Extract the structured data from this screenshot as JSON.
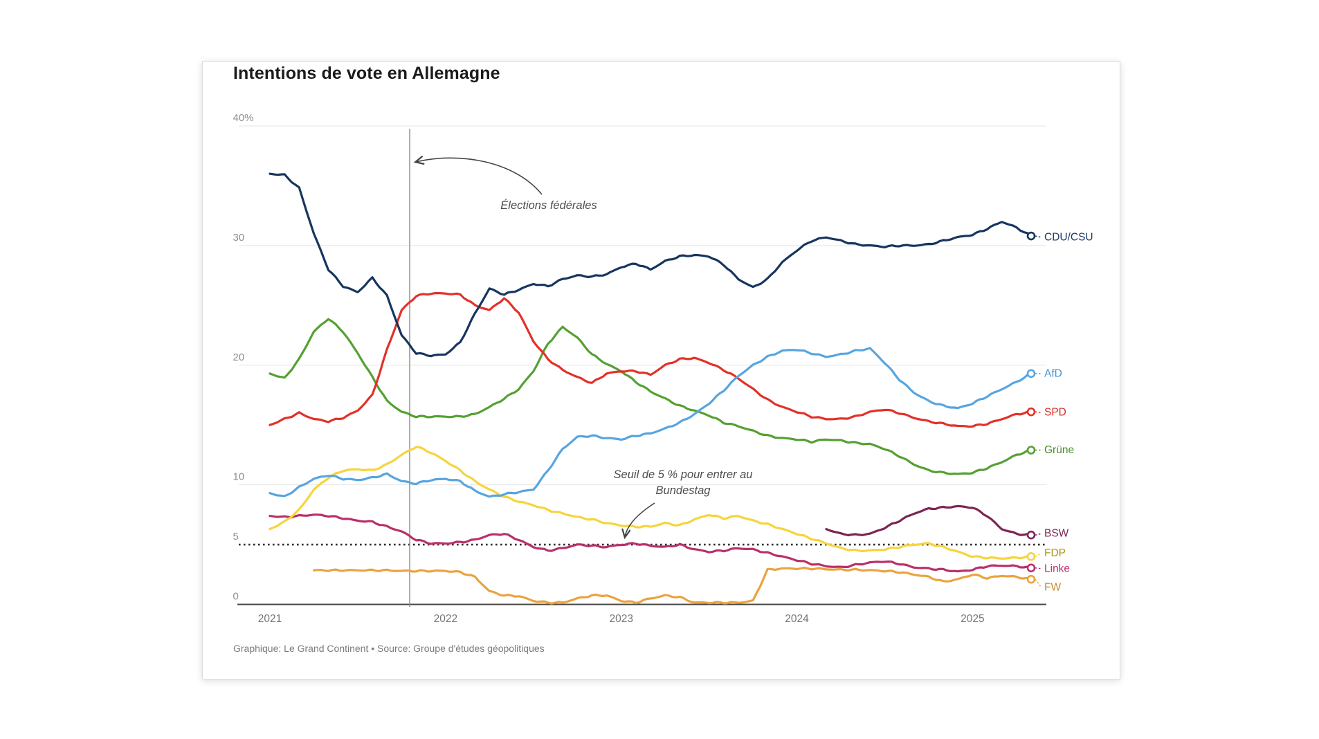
{
  "card": {
    "title": "Intentions de vote en Allemagne",
    "footer": "Graphique: Le Grand Continent • Source: Groupe d'études géopolitiques"
  },
  "chart_data": {
    "type": "line",
    "title": "Intentions de vote en Allemagne",
    "ylabel": "",
    "xlabel": "",
    "ylim": [
      0,
      40
    ],
    "grid": true,
    "legend_position": "right-of-line-ends",
    "y_axis": {
      "ticks": [
        {
          "label": "40%",
          "value": 40,
          "gridline": "solid"
        },
        {
          "label": "30",
          "value": 30,
          "gridline": "solid"
        },
        {
          "label": "20",
          "value": 20,
          "gridline": "solid"
        },
        {
          "label": "10",
          "value": 10,
          "gridline": "solid"
        },
        {
          "label": "5",
          "value": 5,
          "gridline": "dotted-threshold"
        },
        {
          "label": "0",
          "value": 0,
          "gridline": "axis"
        }
      ]
    },
    "x_axis": {
      "tick_labels": [
        "2021",
        "2022",
        "2023",
        "2024",
        "2025"
      ]
    },
    "threshold": {
      "value": 5,
      "style": "dotted",
      "color": "#2e2e2e"
    },
    "annotations": {
      "election": {
        "text": "Élections fédérales",
        "month_index": 9.55,
        "line_color": "#8a8a8a"
      },
      "threshold_note": {
        "line1": "Seuil de 5 % pour entrer au",
        "line2": "Bundestag"
      }
    },
    "months": [
      "2021-01",
      "2021-02",
      "2021-03",
      "2021-04",
      "2021-05",
      "2021-06",
      "2021-07",
      "2021-08",
      "2021-09",
      "2021-10",
      "2021-11",
      "2021-12",
      "2022-01",
      "2022-02",
      "2022-03",
      "2022-04",
      "2022-05",
      "2022-06",
      "2022-07",
      "2022-08",
      "2022-09",
      "2022-10",
      "2022-11",
      "2022-12",
      "2023-01",
      "2023-02",
      "2023-03",
      "2023-04",
      "2023-05",
      "2023-06",
      "2023-07",
      "2023-08",
      "2023-09",
      "2023-10",
      "2023-11",
      "2023-12",
      "2024-01",
      "2024-02",
      "2024-03",
      "2024-04",
      "2024-05",
      "2024-06",
      "2024-07",
      "2024-08",
      "2024-09",
      "2024-10",
      "2024-11",
      "2024-12",
      "2025-01",
      "2025-02",
      "2025-03",
      "2025-04",
      "2025-05"
    ],
    "series": [
      {
        "id": "cdu-csu",
        "name": "CDU/CSU",
        "color": "#17355e",
        "label_color": "#1c3a68",
        "values": [
          36.0,
          35.9,
          34.8,
          31.0,
          28.0,
          26.6,
          26.1,
          27.3,
          25.8,
          22.5,
          21.0,
          20.8,
          20.9,
          21.9,
          24.3,
          26.4,
          25.9,
          26.3,
          26.8,
          26.6,
          27.2,
          27.5,
          27.4,
          27.6,
          28.2,
          28.5,
          28.0,
          28.7,
          29.1,
          29.2,
          29.1,
          28.4,
          27.2,
          26.5,
          27.2,
          28.6,
          29.6,
          30.4,
          30.7,
          30.4,
          30.1,
          30.0,
          29.9,
          30.0,
          30.0,
          30.1,
          30.4,
          30.7,
          30.9,
          31.4,
          32.0,
          31.5,
          30.8
        ]
      },
      {
        "id": "afd",
        "name": "AfD",
        "color": "#57a5df",
        "label_color": "#4295d4",
        "values": [
          9.3,
          9.0,
          9.8,
          10.5,
          10.8,
          10.5,
          10.4,
          10.6,
          10.9,
          10.3,
          10.1,
          10.4,
          10.5,
          10.3,
          9.5,
          9.0,
          9.2,
          9.4,
          9.6,
          11.2,
          13.0,
          14.0,
          14.1,
          13.9,
          13.8,
          14.1,
          14.3,
          14.7,
          15.2,
          15.9,
          16.8,
          17.9,
          19.1,
          20.0,
          20.7,
          21.2,
          21.3,
          21.0,
          20.7,
          20.9,
          21.2,
          21.4,
          20.2,
          18.8,
          17.7,
          17.0,
          16.6,
          16.4,
          16.8,
          17.4,
          18.0,
          18.6,
          19.3
        ]
      },
      {
        "id": "spd",
        "name": "SPD",
        "color": "#e23128",
        "label_color": "#d92b25",
        "values": [
          15.0,
          15.5,
          16.0,
          15.5,
          15.3,
          15.6,
          16.2,
          17.5,
          21.3,
          24.6,
          25.8,
          26.0,
          26.0,
          25.9,
          25.0,
          24.6,
          25.6,
          24.4,
          22.0,
          20.5,
          19.6,
          19.0,
          18.5,
          19.3,
          19.5,
          19.5,
          19.2,
          20.0,
          20.5,
          20.6,
          20.2,
          19.6,
          18.9,
          18.0,
          17.1,
          16.5,
          16.1,
          15.7,
          15.5,
          15.5,
          15.7,
          16.1,
          16.3,
          16.0,
          15.6,
          15.3,
          15.1,
          14.9,
          14.9,
          15.1,
          15.5,
          15.9,
          16.1
        ]
      },
      {
        "id": "gruene",
        "name": "Grüne",
        "color": "#55a033",
        "label_color": "#458e27",
        "values": [
          19.3,
          18.9,
          20.5,
          22.8,
          23.9,
          22.8,
          21.0,
          19.0,
          17.0,
          16.1,
          15.7,
          15.7,
          15.7,
          15.7,
          15.9,
          16.5,
          17.2,
          18.0,
          19.5,
          21.8,
          23.2,
          22.3,
          20.9,
          20.1,
          19.5,
          18.6,
          17.8,
          17.2,
          16.6,
          16.2,
          15.8,
          15.2,
          14.9,
          14.5,
          14.1,
          13.9,
          13.8,
          13.6,
          13.8,
          13.7,
          13.5,
          13.4,
          13.0,
          12.4,
          11.7,
          11.2,
          11.0,
          10.9,
          11.0,
          11.4,
          11.9,
          12.5,
          12.9
        ]
      },
      {
        "id": "bsw",
        "name": "BSW",
        "color": "#7c2553",
        "label_color": "#7c2553",
        "values": [
          null,
          null,
          null,
          null,
          null,
          null,
          null,
          null,
          null,
          null,
          null,
          null,
          null,
          null,
          null,
          null,
          null,
          null,
          null,
          null,
          null,
          null,
          null,
          null,
          null,
          null,
          null,
          null,
          null,
          null,
          null,
          null,
          null,
          null,
          null,
          null,
          null,
          null,
          6.3,
          5.9,
          5.8,
          5.9,
          6.4,
          7.0,
          7.6,
          8.0,
          8.1,
          8.2,
          8.1,
          7.4,
          6.3,
          5.9,
          5.8
        ]
      },
      {
        "id": "fdp",
        "name": "FDP",
        "color": "#f6d43d",
        "label_color": "#af9410",
        "values": [
          6.3,
          6.9,
          7.9,
          9.6,
          10.6,
          11.2,
          11.3,
          11.2,
          11.7,
          12.5,
          13.2,
          12.7,
          12.0,
          11.2,
          10.3,
          9.6,
          9.0,
          8.6,
          8.3,
          7.9,
          7.6,
          7.3,
          7.1,
          6.8,
          6.6,
          6.5,
          6.5,
          6.8,
          6.6,
          7.1,
          7.5,
          7.2,
          7.4,
          7.0,
          6.7,
          6.3,
          5.9,
          5.5,
          5.1,
          4.7,
          4.5,
          4.5,
          4.6,
          4.8,
          5.0,
          5.1,
          4.8,
          4.4,
          4.0,
          3.9,
          3.85,
          3.9,
          4.0
        ]
      },
      {
        "id": "linke",
        "name": "Linke",
        "color": "#b93069",
        "label_color": "#b93069",
        "values": [
          7.4,
          7.3,
          7.4,
          7.5,
          7.4,
          7.2,
          7.0,
          6.9,
          6.5,
          6.1,
          5.4,
          5.1,
          5.1,
          5.2,
          5.4,
          5.8,
          5.9,
          5.4,
          4.8,
          4.5,
          4.7,
          5.0,
          4.9,
          4.8,
          5.0,
          5.1,
          4.9,
          4.8,
          5.0,
          4.6,
          4.4,
          4.5,
          4.7,
          4.6,
          4.3,
          4.0,
          3.7,
          3.4,
          3.2,
          3.1,
          3.3,
          3.5,
          3.6,
          3.4,
          3.1,
          3.0,
          2.9,
          2.75,
          2.9,
          3.2,
          3.25,
          3.2,
          3.05
        ]
      },
      {
        "id": "fw",
        "name": "FW",
        "color": "#eaa33e",
        "label_color": "#c8872b",
        "values": [
          null,
          null,
          null,
          2.85,
          2.85,
          2.85,
          2.85,
          2.85,
          2.85,
          2.8,
          2.8,
          2.8,
          2.8,
          2.7,
          2.3,
          1.1,
          0.75,
          0.7,
          0.3,
          0.15,
          0.15,
          0.5,
          0.75,
          0.75,
          0.3,
          0.15,
          0.5,
          0.75,
          0.6,
          0.15,
          0.15,
          0.15,
          0.15,
          0.3,
          2.9,
          3.0,
          3.0,
          3.0,
          2.95,
          2.9,
          2.9,
          2.85,
          2.8,
          2.7,
          2.5,
          2.3,
          1.9,
          2.1,
          2.5,
          2.2,
          2.4,
          2.3,
          2.1
        ]
      }
    ]
  }
}
